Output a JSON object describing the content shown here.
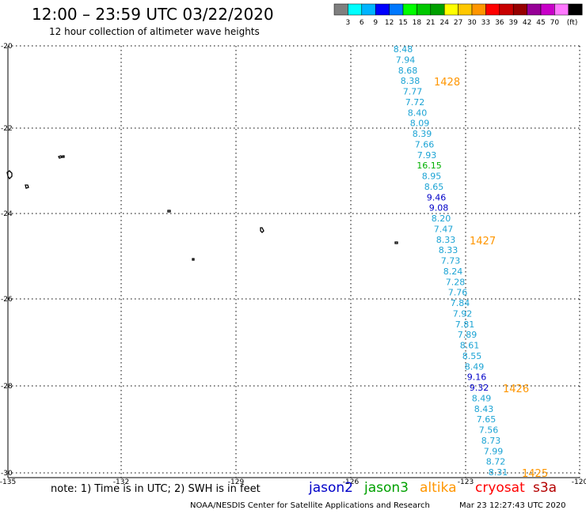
{
  "header": {
    "title": "12:00 – 23:59 UTC 03/22/2020",
    "subtitle": "12 hour collection of altimeter wave heights"
  },
  "legend": {
    "colors": [
      "#7f7f7f",
      "#00ffff",
      "#00b4ff",
      "#0000ff",
      "#0078ff",
      "#00ff00",
      "#00c800",
      "#00a000",
      "#ffff00",
      "#ffc800",
      "#ff9600",
      "#ff0000",
      "#c80000",
      "#960000",
      "#960096",
      "#c800c8",
      "#ff78ff",
      "#000000"
    ],
    "labels": [
      "3",
      "6",
      "9",
      "12",
      "15",
      "18",
      "21",
      "24",
      "27",
      "30",
      "33",
      "36",
      "39",
      "42",
      "45",
      "70"
    ],
    "unit": "(ft)"
  },
  "axes": {
    "lat_labels": [
      "-20",
      "-22",
      "-24",
      "-26",
      "-28",
      "-30"
    ],
    "lon_labels": [
      "-135",
      "-132",
      "-129",
      "-126",
      "-123",
      "-120"
    ]
  },
  "track": {
    "colors": {
      "swh": "#1ba3d4",
      "green": "#00b000",
      "blue": "#0000c8"
    },
    "points": [
      {
        "v": "8.48",
        "c": "swh"
      },
      {
        "v": "7.94",
        "c": "swh"
      },
      {
        "v": "8.68",
        "c": "swh"
      },
      {
        "v": "8.38",
        "c": "swh"
      },
      {
        "v": "7.77",
        "c": "swh"
      },
      {
        "v": "7.72",
        "c": "swh"
      },
      {
        "v": "8.40",
        "c": "swh"
      },
      {
        "v": "8.09",
        "c": "swh"
      },
      {
        "v": "8.39",
        "c": "swh"
      },
      {
        "v": "7.66",
        "c": "swh"
      },
      {
        "v": "7.93",
        "c": "swh"
      },
      {
        "v": "16.15",
        "c": "green"
      },
      {
        "v": "8.95",
        "c": "swh"
      },
      {
        "v": "8.65",
        "c": "swh"
      },
      {
        "v": "9.46",
        "c": "blue"
      },
      {
        "v": "9.08",
        "c": "blue"
      },
      {
        "v": "8.20",
        "c": "swh"
      },
      {
        "v": "7.47",
        "c": "swh"
      },
      {
        "v": "8.33",
        "c": "swh"
      },
      {
        "v": "8.33",
        "c": "swh"
      },
      {
        "v": "7.73",
        "c": "swh"
      },
      {
        "v": "8.24",
        "c": "swh"
      },
      {
        "v": "7.28",
        "c": "swh"
      },
      {
        "v": "7.76",
        "c": "swh"
      },
      {
        "v": "7.84",
        "c": "swh"
      },
      {
        "v": "7.92",
        "c": "swh"
      },
      {
        "v": "7.81",
        "c": "swh"
      },
      {
        "v": "7.89",
        "c": "swh"
      },
      {
        "v": "8.61",
        "c": "swh"
      },
      {
        "v": "8.55",
        "c": "swh"
      },
      {
        "v": "8.49",
        "c": "swh"
      },
      {
        "v": "9.16",
        "c": "blue"
      },
      {
        "v": "9.32",
        "c": "blue"
      },
      {
        "v": "8.49",
        "c": "swh"
      },
      {
        "v": "8.43",
        "c": "swh"
      },
      {
        "v": "7.65",
        "c": "swh"
      },
      {
        "v": "7.56",
        "c": "swh"
      },
      {
        "v": "8.73",
        "c": "swh"
      },
      {
        "v": "7.99",
        "c": "swh"
      },
      {
        "v": "8.72",
        "c": "swh"
      },
      {
        "v": "8.31",
        "c": "swh"
      }
    ],
    "time_labels": [
      {
        "text": "1428",
        "at": 3
      },
      {
        "text": "1427",
        "at": 18
      },
      {
        "text": "1426",
        "at": 32
      },
      {
        "text": "1425",
        "at": 40
      }
    ],
    "time_color": "#ff9600"
  },
  "footer": {
    "note": "note:  1) Time is in UTC;  2) SWH is in feet",
    "satellites": [
      {
        "name": "jason2",
        "color": "#0000c8"
      },
      {
        "name": "jason3",
        "color": "#00a000"
      },
      {
        "name": "altika",
        "color": "#ff9600"
      },
      {
        "name": "cryosat",
        "color": "#ff0000"
      },
      {
        "name": "s3a",
        "color": "#b40000"
      }
    ],
    "credit": "NOAA/NESDIS Center for Satellite Applications and Research",
    "timestamp": "Mar 23 12:27:43 UTC 2020"
  }
}
